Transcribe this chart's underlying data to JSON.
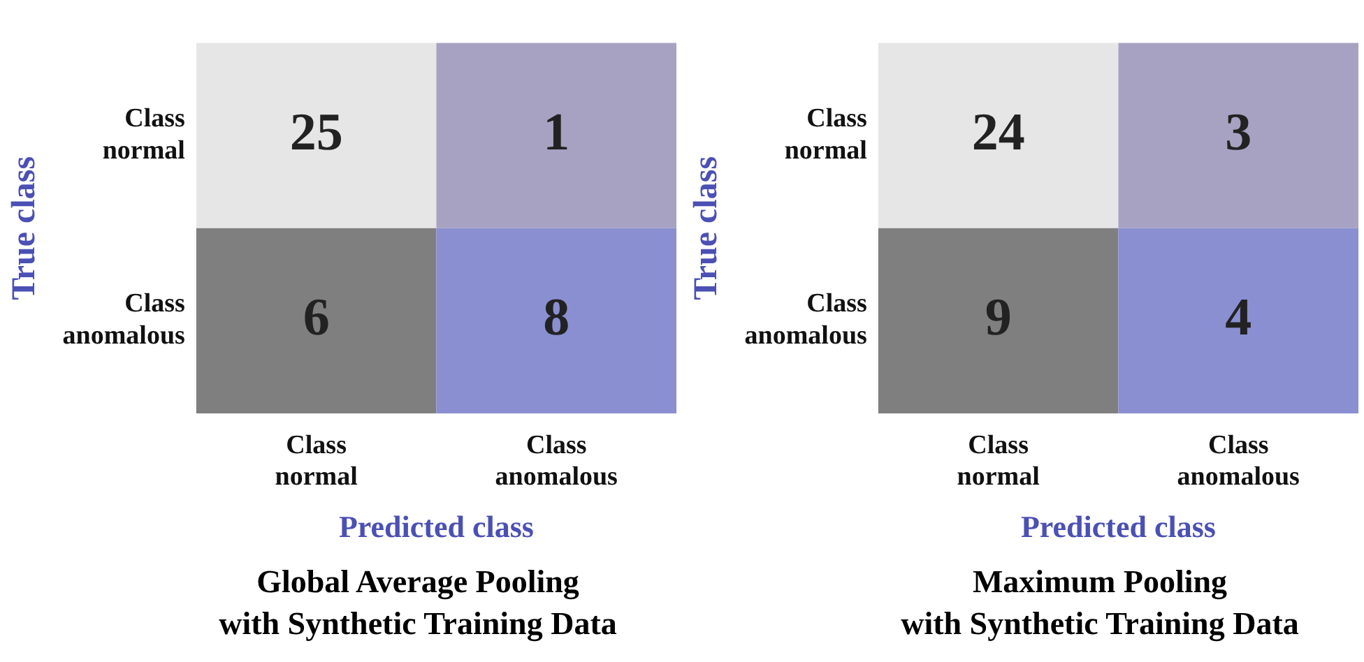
{
  "chart_data": [
    {
      "type": "heatmap",
      "title": "Global Average Pooling\nwith Synthetic Training Data",
      "xlabel": "Predicted class",
      "ylabel": "True class",
      "categories": [
        "Class normal",
        "Class anomalous"
      ],
      "y_categories": [
        "Class normal",
        "Class anomalous"
      ],
      "cells": [
        [
          25,
          1
        ],
        [
          6,
          8
        ]
      ],
      "colors": [
        [
          "#e6e6e6",
          "#a8a2c2"
        ],
        [
          "#7f7f7f",
          "#8a8fd2"
        ]
      ],
      "data_labels": true,
      "grid": false,
      "legend": false
    },
    {
      "type": "heatmap",
      "title": "Maximum Pooling\nwith Synthetic Training Data",
      "xlabel": "Predicted class",
      "ylabel": "True class",
      "categories": [
        "Class normal",
        "Class anomalous"
      ],
      "y_categories": [
        "Class normal",
        "Class anomalous"
      ],
      "cells": [
        [
          24,
          3
        ],
        [
          9,
          4
        ]
      ],
      "colors": [
        [
          "#e6e6e6",
          "#a8a2c2"
        ],
        [
          "#7f7f7f",
          "#8a8fd2"
        ]
      ],
      "data_labels": true,
      "grid": false,
      "legend": false
    }
  ]
}
